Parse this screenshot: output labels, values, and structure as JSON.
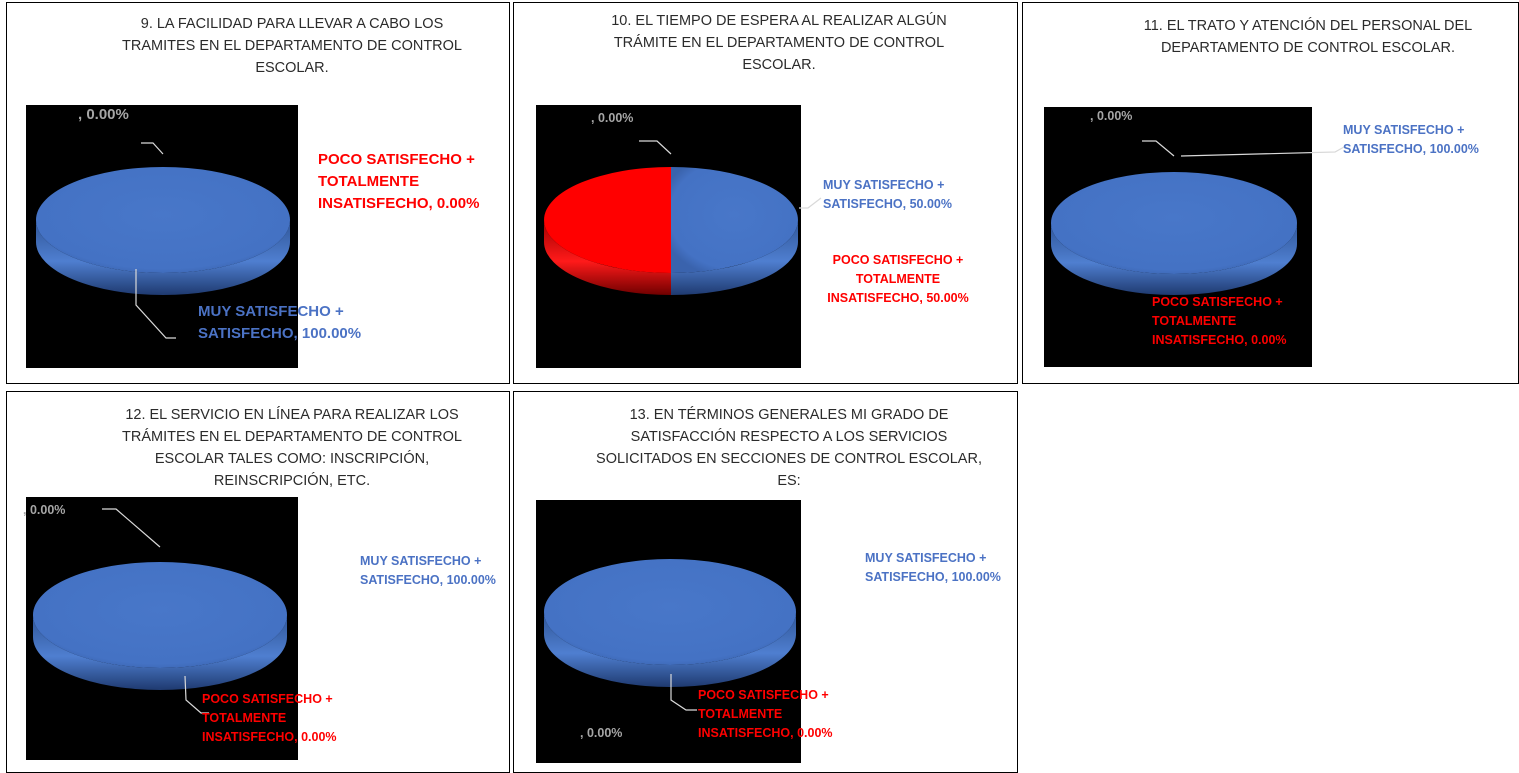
{
  "colors": {
    "blue": "#4472c4",
    "blue_label": "#4b72c4",
    "red": "#ff0000",
    "gray_label": "#a6a6a6",
    "plot_background": "#000000"
  },
  "chart_data": [
    {
      "type": "pie",
      "title": "9.   LA FACILIDAD PARA LLEVAR A CABO LOS TRAMITES EN EL DEPARTAMENTO DE CONTROL ESCOLAR.",
      "title_lines": [
        "9.   LA FACILIDAD PARA LLEVAR A CABO LOS",
        "TRAMITES EN EL DEPARTAMENTO DE CONTROL",
        "ESCOLAR."
      ],
      "slices": [
        {
          "label": "MUY SATISFECHO + SATISFECHO",
          "value": 100.0,
          "color": "#4472c4"
        },
        {
          "label": "POCO SATISFECHO + TOTALMENTE INSATISFECHO",
          "value": 0.0,
          "color": "#ff0000"
        },
        {
          "label": "",
          "value": 0.0
        }
      ],
      "data_labels": [
        {
          "lines": [
            "MUY SATISFECHO +",
            "SATISFECHO, 100.00%"
          ],
          "color": "blue"
        },
        {
          "lines": [
            "POCO SATISFECHO +",
            "TOTALMENTE",
            "INSATISFECHO, 0.00%"
          ],
          "color": "red"
        },
        {
          "lines": [
            ", 0.00%"
          ],
          "color": "gray"
        }
      ]
    },
    {
      "type": "pie",
      "title": "10.   EL TIEMPO DE ESPERA AL REALIZAR ALGÚN TRÁMITE EN EL DEPARTAMENTO DE CONTROL ESCOLAR.",
      "title_lines": [
        "10.   EL TIEMPO DE ESPERA AL REALIZAR ALGÚN",
        "TRÁMITE EN EL DEPARTAMENTO DE CONTROL",
        "ESCOLAR."
      ],
      "slices": [
        {
          "label": "MUY SATISFECHO + SATISFECHO",
          "value": 50.0,
          "color": "#4472c4"
        },
        {
          "label": "POCO SATISFECHO + TOTALMENTE INSATISFECHO",
          "value": 50.0,
          "color": "#ff0000"
        },
        {
          "label": "",
          "value": 0.0
        }
      ],
      "data_labels": [
        {
          "lines": [
            "MUY SATISFECHO +",
            "SATISFECHO, 50.00%"
          ],
          "color": "blue"
        },
        {
          "lines": [
            "POCO SATISFECHO +",
            "TOTALMENTE",
            "INSATISFECHO, 50.00%"
          ],
          "color": "red"
        },
        {
          "lines": [
            ", 0.00%"
          ],
          "color": "gray"
        }
      ]
    },
    {
      "type": "pie",
      "title": "11.   EL TRATO Y ATENCIÓN DEL PERSONAL DEL DEPARTAMENTO DE CONTROL ESCOLAR.",
      "title_lines": [
        "11.   EL TRATO Y ATENCIÓN DEL PERSONAL DEL",
        "DEPARTAMENTO DE CONTROL ESCOLAR."
      ],
      "slices": [
        {
          "label": "MUY SATISFECHO + SATISFECHO",
          "value": 100.0,
          "color": "#4472c4"
        },
        {
          "label": "POCO SATISFECHO + TOTALMENTE INSATISFECHO",
          "value": 0.0,
          "color": "#ff0000"
        },
        {
          "label": "",
          "value": 0.0
        }
      ],
      "data_labels": [
        {
          "lines": [
            "MUY SATISFECHO +",
            "SATISFECHO, 100.00%"
          ],
          "color": "blue"
        },
        {
          "lines": [
            "POCO SATISFECHO +",
            "TOTALMENTE",
            "INSATISFECHO, 0.00%"
          ],
          "color": "red"
        },
        {
          "lines": [
            ", 0.00%"
          ],
          "color": "gray"
        }
      ]
    },
    {
      "type": "pie",
      "title": "12.   EL SERVICIO EN LÍNEA PARA REALIZAR LOS TRÁMITES EN EL DEPARTAMENTO DE CONTROL ESCOLAR TALES COMO: INSCRIPCIÓN, REINSCRIPCIÓN, ETC.",
      "title_lines": [
        "12.   EL SERVICIO EN LÍNEA PARA REALIZAR LOS",
        "TRÁMITES EN EL DEPARTAMENTO DE CONTROL",
        "ESCOLAR TALES COMO: INSCRIPCIÓN,",
        "REINSCRIPCIÓN, ETC."
      ],
      "slices": [
        {
          "label": "MUY SATISFECHO + SATISFECHO",
          "value": 100.0,
          "color": "#4472c4"
        },
        {
          "label": "POCO SATISFECHO + TOTALMENTE INSATISFECHO",
          "value": 0.0,
          "color": "#ff0000"
        },
        {
          "label": "",
          "value": 0.0
        }
      ],
      "data_labels": [
        {
          "lines": [
            "MUY SATISFECHO +",
            "SATISFECHO, 100.00%"
          ],
          "color": "blue"
        },
        {
          "lines": [
            "POCO SATISFECHO +",
            "TOTALMENTE",
            "INSATISFECHO, 0.00%"
          ],
          "color": "red"
        },
        {
          "lines": [
            ", 0.00%"
          ],
          "color": "gray"
        }
      ]
    },
    {
      "type": "pie",
      "title": "13.   EN TÉRMINOS GENERALES MI GRADO DE SATISFACCIÓN RESPECTO A LOS SERVICIOS SOLICITADOS EN SECCIONES DE CONTROL ESCOLAR, ES:",
      "title_lines": [
        "13.   EN TÉRMINOS GENERALES MI GRADO DE",
        "SATISFACCIÓN RESPECTO A LOS SERVICIOS",
        "SOLICITADOS EN SECCIONES DE CONTROL ESCOLAR,",
        "ES:"
      ],
      "slices": [
        {
          "label": "MUY SATISFECHO + SATISFECHO",
          "value": 100.0,
          "color": "#4472c4"
        },
        {
          "label": "POCO SATISFECHO + TOTALMENTE INSATISFECHO",
          "value": 0.0,
          "color": "#ff0000"
        },
        {
          "label": "",
          "value": 0.0
        }
      ],
      "data_labels": [
        {
          "lines": [
            "MUY SATISFECHO +",
            "SATISFECHO, 100.00%"
          ],
          "color": "blue"
        },
        {
          "lines": [
            "POCO SATISFECHO +",
            "TOTALMENTE",
            "INSATISFECHO, 0.00%"
          ],
          "color": "red"
        },
        {
          "lines": [
            ", 0.00%"
          ],
          "color": "gray"
        }
      ]
    }
  ]
}
